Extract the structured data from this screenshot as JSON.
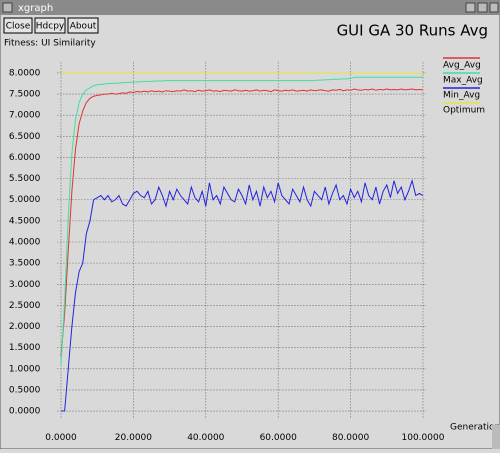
{
  "window": {
    "title": "xgraph",
    "buttons": [
      "Close",
      "Hdcpy",
      "About"
    ]
  },
  "chart_data": {
    "type": "line",
    "title": "GUI GA 30 Runs Avg",
    "subtitle": "Fitness: UI Similarity",
    "x_label": "Generations",
    "x": [
      0,
      1,
      2,
      3,
      4,
      5,
      6,
      7,
      8,
      9,
      10,
      11,
      12,
      13,
      14,
      15,
      16,
      17,
      18,
      19,
      20,
      21,
      22,
      23,
      24,
      25,
      26,
      27,
      28,
      29,
      30,
      31,
      32,
      33,
      34,
      35,
      36,
      37,
      38,
      39,
      40,
      41,
      42,
      43,
      44,
      45,
      46,
      47,
      48,
      49,
      50,
      51,
      52,
      53,
      54,
      55,
      56,
      57,
      58,
      59,
      60,
      61,
      62,
      63,
      64,
      65,
      66,
      67,
      68,
      69,
      70,
      71,
      72,
      73,
      74,
      75,
      76,
      77,
      78,
      79,
      80,
      81,
      82,
      83,
      84,
      85,
      86,
      87,
      88,
      89,
      90,
      91,
      92,
      93,
      94,
      95,
      96,
      97,
      98,
      99,
      100
    ],
    "series": [
      {
        "name": "Avg_Avg",
        "color": "#e03232",
        "values": [
          1.3,
          2.3,
          3.8,
          5.2,
          6.2,
          6.8,
          7.1,
          7.3,
          7.4,
          7.45,
          7.47,
          7.48,
          7.5,
          7.5,
          7.52,
          7.5,
          7.51,
          7.53,
          7.52,
          7.55,
          7.54,
          7.56,
          7.55,
          7.57,
          7.55,
          7.58,
          7.56,
          7.57,
          7.55,
          7.58,
          7.57,
          7.56,
          7.58,
          7.57,
          7.6,
          7.57,
          7.58,
          7.56,
          7.59,
          7.57,
          7.58,
          7.6,
          7.57,
          7.58,
          7.56,
          7.59,
          7.58,
          7.57,
          7.6,
          7.58,
          7.57,
          7.59,
          7.57,
          7.58,
          7.6,
          7.57,
          7.59,
          7.58,
          7.56,
          7.6,
          7.58,
          7.57,
          7.59,
          7.58,
          7.6,
          7.57,
          7.58,
          7.59,
          7.57,
          7.6,
          7.58,
          7.59,
          7.6,
          7.58,
          7.57,
          7.6,
          7.59,
          7.61,
          7.58,
          7.6,
          7.59,
          7.62,
          7.6,
          7.59,
          7.61,
          7.6,
          7.62,
          7.59,
          7.61,
          7.6,
          7.62,
          7.6,
          7.61,
          7.6,
          7.62,
          7.6,
          7.61,
          7.62,
          7.6,
          7.61,
          7.6
        ]
      },
      {
        "name": "Max_Avg",
        "color": "#3ee0a0",
        "values": [
          1.1,
          2.6,
          4.6,
          6.1,
          6.9,
          7.3,
          7.5,
          7.6,
          7.65,
          7.7,
          7.72,
          7.73,
          7.74,
          7.75,
          7.75,
          7.76,
          7.76,
          7.77,
          7.77,
          7.78,
          7.78,
          7.79,
          7.79,
          7.8,
          7.8,
          7.8,
          7.81,
          7.81,
          7.81,
          7.82,
          7.82,
          7.82,
          7.82,
          7.82,
          7.82,
          7.82,
          7.82,
          7.82,
          7.82,
          7.82,
          7.82,
          7.82,
          7.82,
          7.82,
          7.82,
          7.82,
          7.82,
          7.82,
          7.82,
          7.82,
          7.82,
          7.82,
          7.82,
          7.82,
          7.82,
          7.82,
          7.82,
          7.82,
          7.82,
          7.82,
          7.82,
          7.82,
          7.82,
          7.82,
          7.82,
          7.82,
          7.82,
          7.82,
          7.82,
          7.82,
          7.82,
          7.83,
          7.83,
          7.84,
          7.84,
          7.85,
          7.85,
          7.85,
          7.86,
          7.86,
          7.87,
          7.9,
          7.9,
          7.9,
          7.9,
          7.9,
          7.9,
          7.9,
          7.9,
          7.9,
          7.9,
          7.9,
          7.9,
          7.9,
          7.9,
          7.9,
          7.9,
          7.9,
          7.9,
          7.9,
          7.9
        ]
      },
      {
        "name": "Min_Avg",
        "color": "#2222e0",
        "values": [
          0,
          0,
          1.0,
          2.0,
          2.8,
          3.3,
          3.5,
          4.2,
          4.5,
          5.0,
          5.05,
          5.1,
          5.0,
          5.1,
          4.95,
          5.0,
          5.1,
          4.9,
          4.85,
          5.0,
          5.15,
          5.2,
          5.1,
          5.05,
          5.2,
          4.9,
          5.0,
          5.3,
          5.1,
          4.85,
          5.2,
          5.0,
          5.25,
          5.1,
          5.0,
          4.9,
          5.3,
          5.05,
          4.95,
          5.2,
          4.85,
          5.4,
          5.0,
          5.1,
          4.9,
          5.3,
          5.15,
          5.0,
          4.95,
          5.25,
          5.1,
          4.9,
          5.35,
          5.0,
          5.2,
          4.85,
          5.3,
          5.05,
          5.2,
          4.95,
          5.4,
          5.1,
          5.0,
          4.9,
          5.25,
          5.1,
          4.95,
          5.3,
          5.0,
          4.85,
          5.2,
          5.1,
          5.0,
          5.3,
          4.9,
          5.15,
          5.35,
          5.0,
          5.1,
          4.9,
          5.25,
          5.05,
          5.2,
          4.95,
          5.4,
          5.1,
          5.0,
          5.3,
          4.9,
          5.2,
          5.35,
          5.05,
          5.45,
          5.15,
          5.3,
          5.0,
          5.2,
          5.45,
          5.1,
          5.15,
          5.1
        ]
      },
      {
        "name": "Optimum",
        "color": "#e6e640",
        "x": [
          0,
          100
        ],
        "values": [
          8,
          8
        ]
      }
    ],
    "xlim": [
      -1,
      101
    ],
    "ylim": [
      -0.2,
      8.25
    ],
    "xticks": [
      {
        "value": 0,
        "label": "0.0000"
      },
      {
        "value": 20,
        "label": "20.0000"
      },
      {
        "value": 40,
        "label": "40.0000"
      },
      {
        "value": 60,
        "label": "60.0000"
      },
      {
        "value": 80,
        "label": "80.0000"
      },
      {
        "value": 100,
        "label": "100.0000"
      }
    ],
    "yticks": [
      {
        "value": 0,
        "label": "0.0000"
      },
      {
        "value": 0.5,
        "label": "0.5000"
      },
      {
        "value": 1,
        "label": "1.0000"
      },
      {
        "value": 1.5,
        "label": "1.5000"
      },
      {
        "value": 2,
        "label": "2.0000"
      },
      {
        "value": 2.5,
        "label": "2.5000"
      },
      {
        "value": 3,
        "label": "3.0000"
      },
      {
        "value": 3.5,
        "label": "3.5000"
      },
      {
        "value": 4,
        "label": "4.0000"
      },
      {
        "value": 4.5,
        "label": "4.5000"
      },
      {
        "value": 5,
        "label": "5.0000"
      },
      {
        "value": 5.5,
        "label": "5.5000"
      },
      {
        "value": 6,
        "label": "6.0000"
      },
      {
        "value": 6.5,
        "label": "6.5000"
      },
      {
        "value": 7,
        "label": "7.0000"
      },
      {
        "value": 7.5,
        "label": "7.5000"
      },
      {
        "value": 8,
        "label": "8.0000"
      }
    ],
    "grid": true,
    "legend": "right"
  }
}
